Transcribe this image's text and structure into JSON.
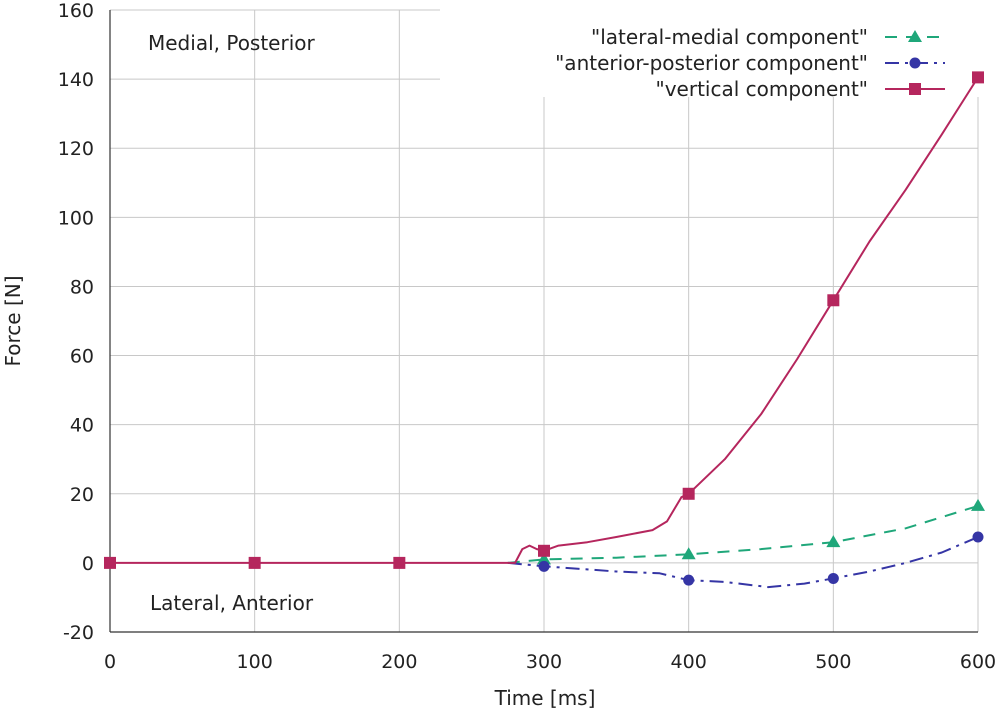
{
  "chart_data": {
    "type": "line",
    "xlabel": "Time [ms]",
    "ylabel": "Force [N]",
    "xlim": [
      0,
      600
    ],
    "ylim": [
      -20,
      160
    ],
    "xticks": [
      0,
      100,
      200,
      300,
      400,
      500,
      600
    ],
    "yticks": [
      -20,
      0,
      20,
      40,
      60,
      80,
      100,
      120,
      140,
      160
    ],
    "grid": true,
    "legend_position": "top-right",
    "annotations": {
      "top_left": "Medial, Posterior",
      "bottom_left": "Lateral, Anterior"
    },
    "series": [
      {
        "name": "\"lateral-medial component\"",
        "color": "#1fa77a",
        "line_style": "dashed",
        "marker": "triangle",
        "line": [
          [
            275,
            0
          ],
          [
            300,
            1
          ],
          [
            350,
            1.5
          ],
          [
            400,
            2.5
          ],
          [
            450,
            4
          ],
          [
            500,
            6
          ],
          [
            550,
            10
          ],
          [
            600,
            16.5
          ]
        ],
        "markers": [
          [
            300,
            1
          ],
          [
            400,
            2.5
          ],
          [
            500,
            6
          ],
          [
            600,
            16.5
          ]
        ]
      },
      {
        "name": "\"anterior-posterior component\"",
        "color": "#3535a5",
        "line_style": "dash-dot",
        "marker": "circle",
        "line": [
          [
            275,
            0
          ],
          [
            300,
            -1
          ],
          [
            350,
            -2.5
          ],
          [
            380,
            -3
          ],
          [
            400,
            -5
          ],
          [
            425,
            -5.5
          ],
          [
            455,
            -7
          ],
          [
            480,
            -6
          ],
          [
            500,
            -4.5
          ],
          [
            525,
            -2.5
          ],
          [
            550,
            0
          ],
          [
            575,
            3
          ],
          [
            600,
            7.5
          ]
        ],
        "markers": [
          [
            300,
            -1
          ],
          [
            400,
            -5
          ],
          [
            500,
            -4.5
          ],
          [
            600,
            7.5
          ]
        ]
      },
      {
        "name": "\"vertical component\"",
        "color": "#b5265d",
        "line_style": "solid",
        "marker": "square",
        "line": [
          [
            0,
            0
          ],
          [
            100,
            0
          ],
          [
            200,
            0
          ],
          [
            280,
            0
          ],
          [
            285,
            4
          ],
          [
            290,
            5
          ],
          [
            295,
            4
          ],
          [
            300,
            3.5
          ],
          [
            310,
            5
          ],
          [
            330,
            6
          ],
          [
            350,
            7.5
          ],
          [
            375,
            9.5
          ],
          [
            385,
            12
          ],
          [
            395,
            19
          ],
          [
            400,
            20
          ],
          [
            425,
            30
          ],
          [
            450,
            43
          ],
          [
            475,
            59
          ],
          [
            500,
            76
          ],
          [
            525,
            93
          ],
          [
            550,
            108
          ],
          [
            575,
            124
          ],
          [
            600,
            140.5
          ]
        ],
        "markers": [
          [
            0,
            0
          ],
          [
            100,
            0
          ],
          [
            200,
            0
          ],
          [
            300,
            3.5
          ],
          [
            400,
            20
          ],
          [
            500,
            76
          ],
          [
            600,
            140.5
          ]
        ]
      }
    ]
  }
}
